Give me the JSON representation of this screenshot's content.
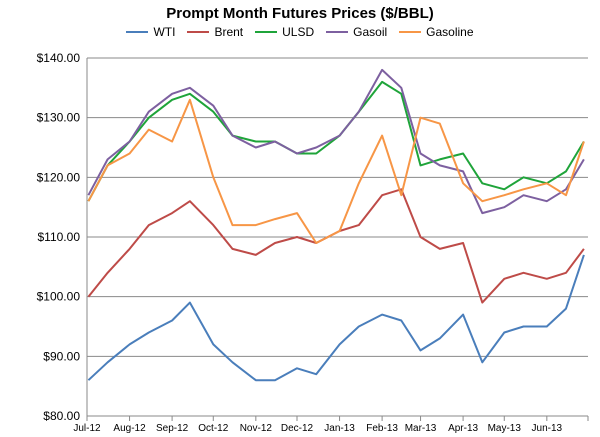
{
  "chart_data": {
    "type": "line",
    "title": "Prompt Month Futures Prices ($/BBL)",
    "xlabel": "",
    "ylabel": "",
    "ylim": [
      80,
      140
    ],
    "y_ticks": [
      "$80.00",
      "$90.00",
      "$100.00",
      "$110.00",
      "$120.00",
      "$130.00",
      "$140.00"
    ],
    "y_tick_values": [
      80,
      90,
      100,
      110,
      120,
      130,
      140
    ],
    "x_ticks": [
      "Jul-12",
      "Aug-12",
      "Sep-12",
      "Oct-12",
      "Nov-12",
      "Dec-12",
      "Jan-13",
      "Feb-13",
      "Mar-13",
      "Apr-13",
      "May-13",
      "Jun-13"
    ],
    "x_tick_values": [
      "2012-07-01",
      "2012-08-01",
      "2012-09-01",
      "2012-10-01",
      "2012-11-01",
      "2012-12-01",
      "2013-01-01",
      "2013-02-01",
      "2013-03-01",
      "2013-04-01",
      "2013-05-01",
      "2013-06-01"
    ],
    "xlim": [
      "2012-07-01",
      "2013-07-01"
    ],
    "grid": "horizontal",
    "legend": "top",
    "x": [
      "2012-07-02",
      "2012-07-16",
      "2012-08-01",
      "2012-08-15",
      "2012-09-01",
      "2012-09-14",
      "2012-10-01",
      "2012-10-15",
      "2012-11-01",
      "2012-11-15",
      "2012-12-01",
      "2012-12-15",
      "2013-01-01",
      "2013-01-15",
      "2013-02-01",
      "2013-02-15",
      "2013-03-01",
      "2013-03-15",
      "2013-04-01",
      "2013-04-15",
      "2013-05-01",
      "2013-05-15",
      "2013-06-01",
      "2013-06-15",
      "2013-06-28"
    ],
    "series": [
      {
        "name": "WTI",
        "color": "#4a7ebb",
        "values": [
          86,
          89,
          92,
          94,
          96,
          99,
          92,
          89,
          86,
          86,
          88,
          87,
          92,
          95,
          97,
          96,
          91,
          93,
          97,
          89,
          94,
          95,
          95,
          98,
          107
        ]
      },
      {
        "name": "Brent",
        "color": "#be4b48",
        "values": [
          100,
          104,
          108,
          112,
          114,
          116,
          112,
          108,
          107,
          109,
          110,
          109,
          111,
          112,
          117,
          118,
          110,
          108,
          109,
          99,
          103,
          104,
          103,
          104,
          108
        ]
      },
      {
        "name": "ULSD",
        "color": "#1fa43a",
        "values": [
          116,
          122,
          126,
          130,
          133,
          134,
          131,
          127,
          126,
          126,
          124,
          124,
          127,
          131,
          136,
          134,
          122,
          123,
          124,
          119,
          118,
          120,
          119,
          121,
          126
        ]
      },
      {
        "name": "Gasoil",
        "color": "#7d60a0",
        "values": [
          117,
          123,
          126,
          131,
          134,
          135,
          132,
          127,
          125,
          126,
          124,
          125,
          127,
          131,
          138,
          135,
          124,
          122,
          121,
          114,
          115,
          117,
          116,
          118,
          123
        ]
      },
      {
        "name": "Gasoline",
        "color": "#f79646",
        "values": [
          116,
          122,
          124,
          128,
          126,
          133,
          120,
          112,
          112,
          113,
          114,
          109,
          111,
          119,
          127,
          117,
          130,
          129,
          119,
          116,
          117,
          118,
          119,
          117,
          126
        ]
      }
    ]
  }
}
